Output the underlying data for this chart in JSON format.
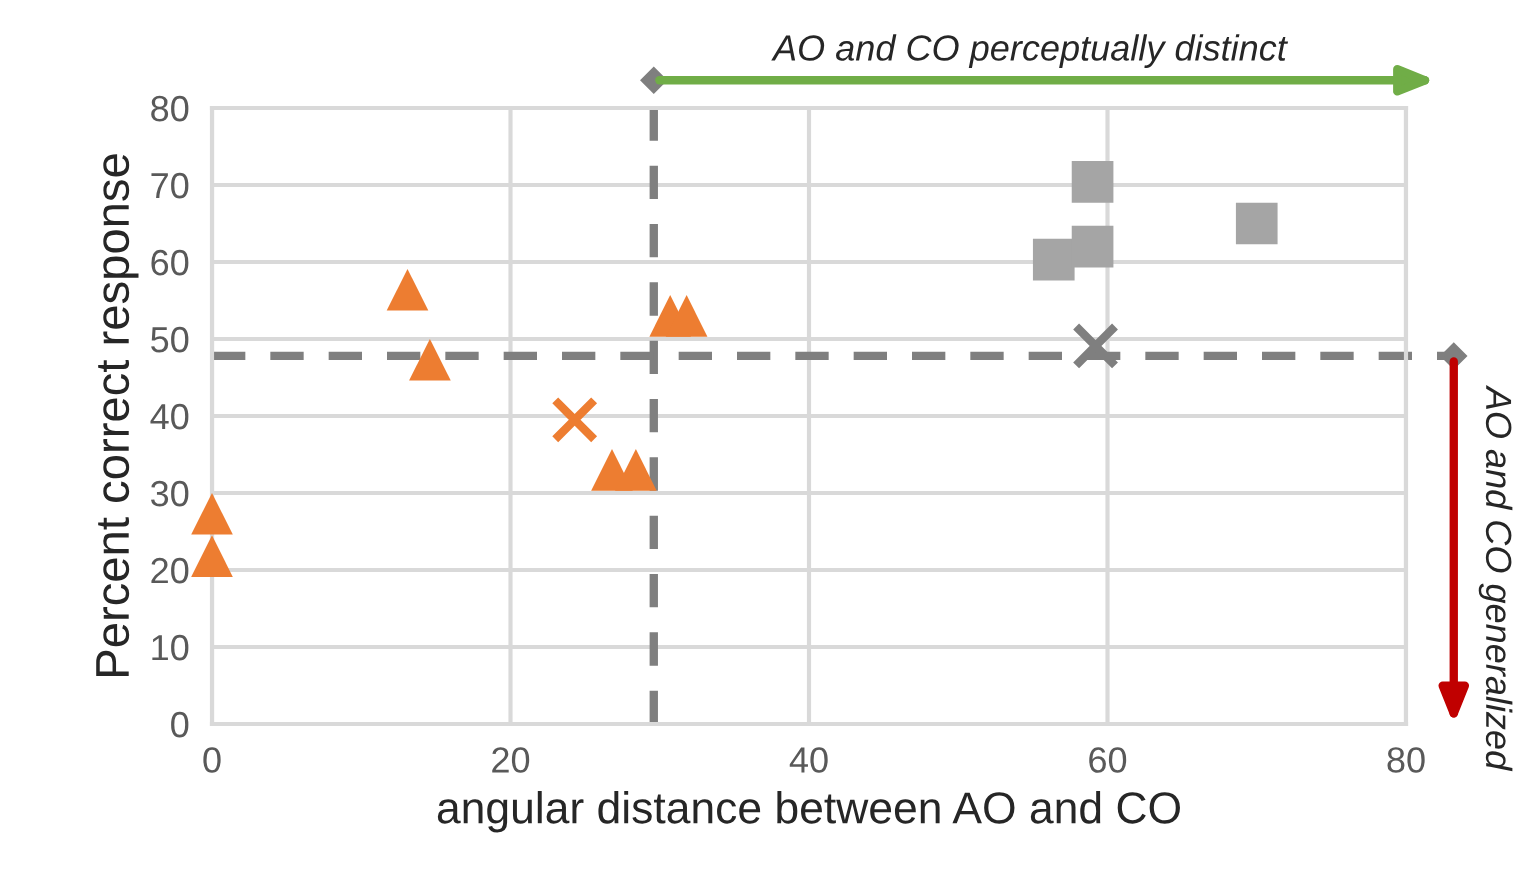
{
  "chart_data": {
    "type": "scatter",
    "xlabel": "angular distance between AO and CO",
    "ylabel": "Percent correct response",
    "xlim": [
      0,
      80
    ],
    "ylim": [
      0,
      80
    ],
    "xticks": [
      0,
      20,
      40,
      60,
      80
    ],
    "yticks": [
      0,
      10,
      20,
      30,
      40,
      50,
      60,
      70,
      80
    ],
    "grid": true,
    "series": [
      {
        "x": [
          0,
          0,
          13.1,
          14.6,
          26.8,
          28.4,
          30.7,
          31.8
        ],
        "values": [
          27.3,
          21.8,
          56.4,
          47.3,
          33,
          33,
          53,
          53
        ],
        "color": "#ed7d31",
        "marker": "triangle"
      },
      {
        "x": [
          24.3
        ],
        "values": [
          39.5
        ],
        "color": "#ed7d31",
        "marker": "cross"
      },
      {
        "x": [
          56.4,
          59,
          59,
          70
        ],
        "values": [
          60.3,
          62,
          70.4,
          65
        ],
        "color": "#a5a5a5",
        "marker": "square"
      },
      {
        "x": [
          59.2
        ],
        "values": [
          49.1
        ],
        "color": "#7f7f7f",
        "marker": "cross"
      }
    ],
    "ref_lines": [
      {
        "axis": "x",
        "value": 29.6,
        "color": "#7f7f7f",
        "line_style": "dashed"
      },
      {
        "axis": "y",
        "value": 47.8,
        "color": "#7f7f7f",
        "line_style": "dashed"
      }
    ],
    "annotations": [
      "AO and CO perceptually distinct",
      "AO and CO generalized"
    ]
  }
}
